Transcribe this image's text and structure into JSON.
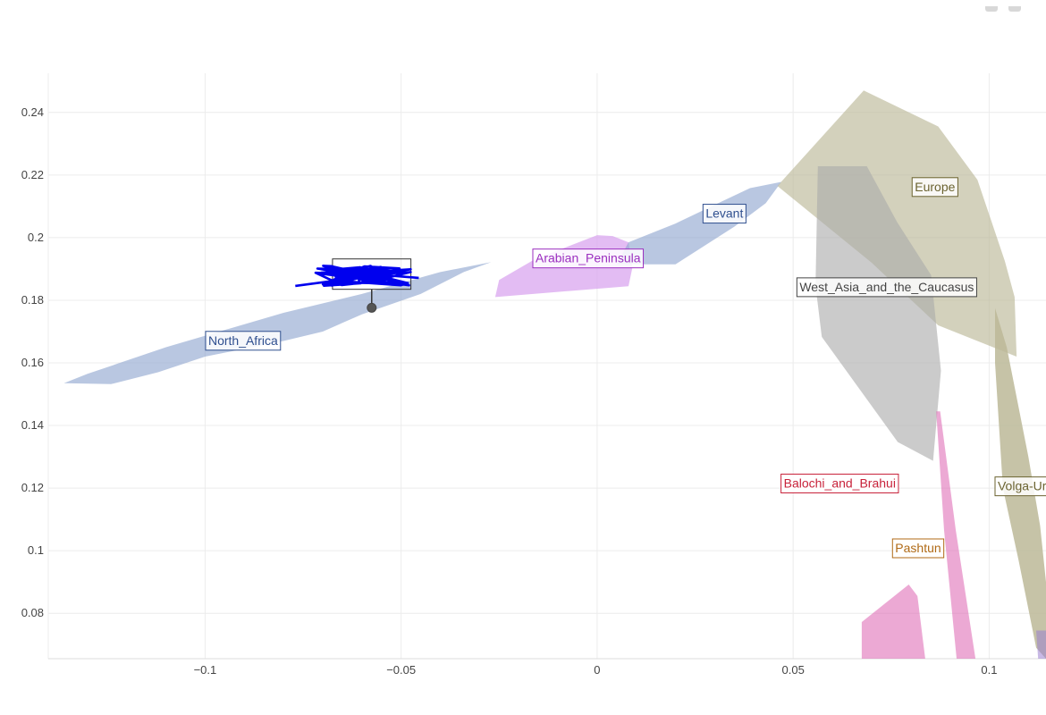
{
  "chart_data": {
    "type": "scatter",
    "title": "",
    "xlabel": "",
    "ylabel": "",
    "xlim": [
      -0.14,
      0.1145
    ],
    "ylim": [
      0.0655,
      0.2525
    ],
    "grid": true,
    "x_ticks": [
      {
        "value": -0.1,
        "label": "−0.1"
      },
      {
        "value": -0.05,
        "label": "−0.05"
      },
      {
        "value": 0,
        "label": "0"
      },
      {
        "value": 0.05,
        "label": "0.05"
      },
      {
        "value": 0.1,
        "label": "0.1"
      }
    ],
    "y_ticks": [
      {
        "value": 0.08,
        "label": "0.08"
      },
      {
        "value": 0.1,
        "label": "0.1"
      },
      {
        "value": 0.12,
        "label": "0.12"
      },
      {
        "value": 0.14,
        "label": "0.14"
      },
      {
        "value": 0.16,
        "label": "0.16"
      },
      {
        "value": 0.18,
        "label": "0.18"
      },
      {
        "value": 0.2,
        "label": "0.2"
      },
      {
        "value": 0.22,
        "label": "0.22"
      },
      {
        "value": 0.24,
        "label": "0.24"
      }
    ],
    "regions": [
      {
        "name": "North_Africa",
        "color": "#8ea4cf",
        "opacity": 0.62,
        "polygon": [
          [
            -0.136,
            0.1535
          ],
          [
            -0.124,
            0.1532
          ],
          [
            -0.112,
            0.157
          ],
          [
            -0.1,
            0.162
          ],
          [
            -0.08,
            0.167
          ],
          [
            -0.07,
            0.17
          ],
          [
            -0.06,
            0.1755
          ],
          [
            -0.045,
            0.182
          ],
          [
            -0.034,
            0.189
          ],
          [
            -0.027,
            0.1922
          ],
          [
            -0.04,
            0.189
          ],
          [
            -0.06,
            0.182
          ],
          [
            -0.08,
            0.176
          ],
          [
            -0.11,
            0.165
          ],
          [
            -0.13,
            0.1565
          ]
        ],
        "label": {
          "x": -0.091,
          "y": 0.1672,
          "anchor": "middle"
        }
      },
      {
        "name": "Arabian_Peninsula",
        "color": "#d8a2ee",
        "opacity": 0.72,
        "polygon": [
          [
            -0.026,
            0.181
          ],
          [
            -0.025,
            0.1865
          ],
          [
            -0.016,
            0.193
          ],
          [
            0,
            0.2008
          ],
          [
            0.004,
            0.2005
          ],
          [
            0.008,
            0.1985
          ],
          [
            0.009,
            0.1905
          ],
          [
            0.008,
            0.1845
          ]
        ],
        "label": {
          "x": -0.003,
          "y": 0.1935,
          "anchor": "middle"
        }
      },
      {
        "name": "Levant",
        "color": "#8ea4cf",
        "opacity": 0.62,
        "polygon": [
          [
            0.005,
            0.1915
          ],
          [
            0.008,
            0.1985
          ],
          [
            0.02,
            0.2045
          ],
          [
            0.03,
            0.2105
          ],
          [
            0.039,
            0.2158
          ],
          [
            0.047,
            0.2178
          ],
          [
            0.043,
            0.211
          ],
          [
            0.035,
            0.2035
          ],
          [
            0.02,
            0.1915
          ]
        ],
        "label": {
          "x": 0.0318,
          "y": 0.2078,
          "anchor": "middle"
        }
      },
      {
        "name": "Europe",
        "color": "#bcb898",
        "opacity": 0.65,
        "polygon": [
          [
            0.046,
            0.2165
          ],
          [
            0.068,
            0.247
          ],
          [
            0.087,
            0.2355
          ],
          [
            0.097,
            0.2185
          ],
          [
            0.104,
            0.1925
          ],
          [
            0.1065,
            0.181
          ],
          [
            0.107,
            0.162
          ],
          [
            0.087,
            0.172
          ],
          [
            0.07,
            0.192
          ]
        ],
        "label": {
          "x": 0.0855,
          "y": 0.2163,
          "anchor": "middle"
        }
      },
      {
        "name": "West_Asia_and_the_Caucasus",
        "color": "#ababab",
        "opacity": 0.62,
        "polygon": [
          [
            0.0563,
            0.2228
          ],
          [
            0.0688,
            0.2228
          ],
          [
            0.0765,
            0.205
          ],
          [
            0.0852,
            0.188
          ],
          [
            0.0877,
            0.1575
          ],
          [
            0.0857,
            0.1287
          ],
          [
            0.0767,
            0.1347
          ],
          [
            0.0573,
            0.1683
          ],
          [
            0.0557,
            0.1847
          ]
        ],
        "label": {
          "x": 0.0732,
          "y": 0.1843,
          "anchor": "middle"
        }
      },
      {
        "name": "Volga-Ural",
        "color": "#bcb898",
        "opacity": 0.85,
        "polygon": [
          [
            0.1015,
            0.1775
          ],
          [
            0.1045,
            0.165
          ],
          [
            0.11,
            0.13
          ],
          [
            0.113,
            0.108
          ],
          [
            0.1145,
            0.09
          ],
          [
            0.1145,
            0.0655
          ],
          [
            0.112,
            0.069
          ],
          [
            0.1075,
            0.097
          ],
          [
            0.1035,
            0.12
          ],
          [
            0.1015,
            0.16
          ]
        ],
        "label": {
          "x": 0.1015,
          "y": 0.1207,
          "anchor": "start"
        }
      },
      {
        "name": "Balochi_and_Brahui",
        "color": "#e070b8",
        "opacity": 0.6,
        "polygon": [
          [
            0.0865,
            0.1445
          ],
          [
            0.0875,
            0.1445
          ],
          [
            0.0915,
            0.1065
          ],
          [
            0.0965,
            0.0655
          ],
          [
            0.0917,
            0.0655
          ],
          [
            0.0885,
            0.1065
          ]
        ],
        "label": {
          "x": 0.0612,
          "y": 0.1216,
          "anchor": "middle"
        }
      },
      {
        "name": "Pashtun",
        "color": "#e070b8",
        "opacity": 0.6,
        "polygon": [
          [
            0.0675,
            0.0772
          ],
          [
            0.0795,
            0.0892
          ],
          [
            0.0817,
            0.0855
          ],
          [
            0.0837,
            0.0655
          ],
          [
            0.0675,
            0.0655
          ]
        ],
        "label": {
          "x": 0.0812,
          "y": 0.1009,
          "anchor": "middle"
        }
      },
      {
        "name": "",
        "color": "#9a7fd0",
        "opacity": 0.55,
        "polygon": [
          [
            0.112,
            0.0745
          ],
          [
            0.1145,
            0.0745
          ],
          [
            0.1145,
            0.0655
          ],
          [
            0.1125,
            0.0655
          ]
        ],
        "label": null
      }
    ],
    "label_colors": {
      "North_Africa": "#2f4f8f",
      "Arabian_Peninsula": "#9b2fbf",
      "Levant": "#2f4f8f",
      "Europe": "#6b6330",
      "West_Asia_and_the_Caucasus": "#444444",
      "Volga-Ural": "#6b6330",
      "Balochi_and_Brahui": "#c8233b",
      "Pashtun": "#b06a16"
    },
    "sample_point": {
      "x": -0.0575,
      "y": 0.1776,
      "color": "#555555"
    },
    "highlight_box": {
      "x0": -0.0675,
      "x1": -0.0475,
      "y0": 0.1835,
      "y1": 0.1932
    },
    "cluster": {
      "color": "#0000ee",
      "x_range": [
        -0.077,
        -0.0455
      ],
      "y_range": [
        0.184,
        0.192
      ],
      "center": [
        -0.0585,
        0.1875
      ]
    }
  }
}
